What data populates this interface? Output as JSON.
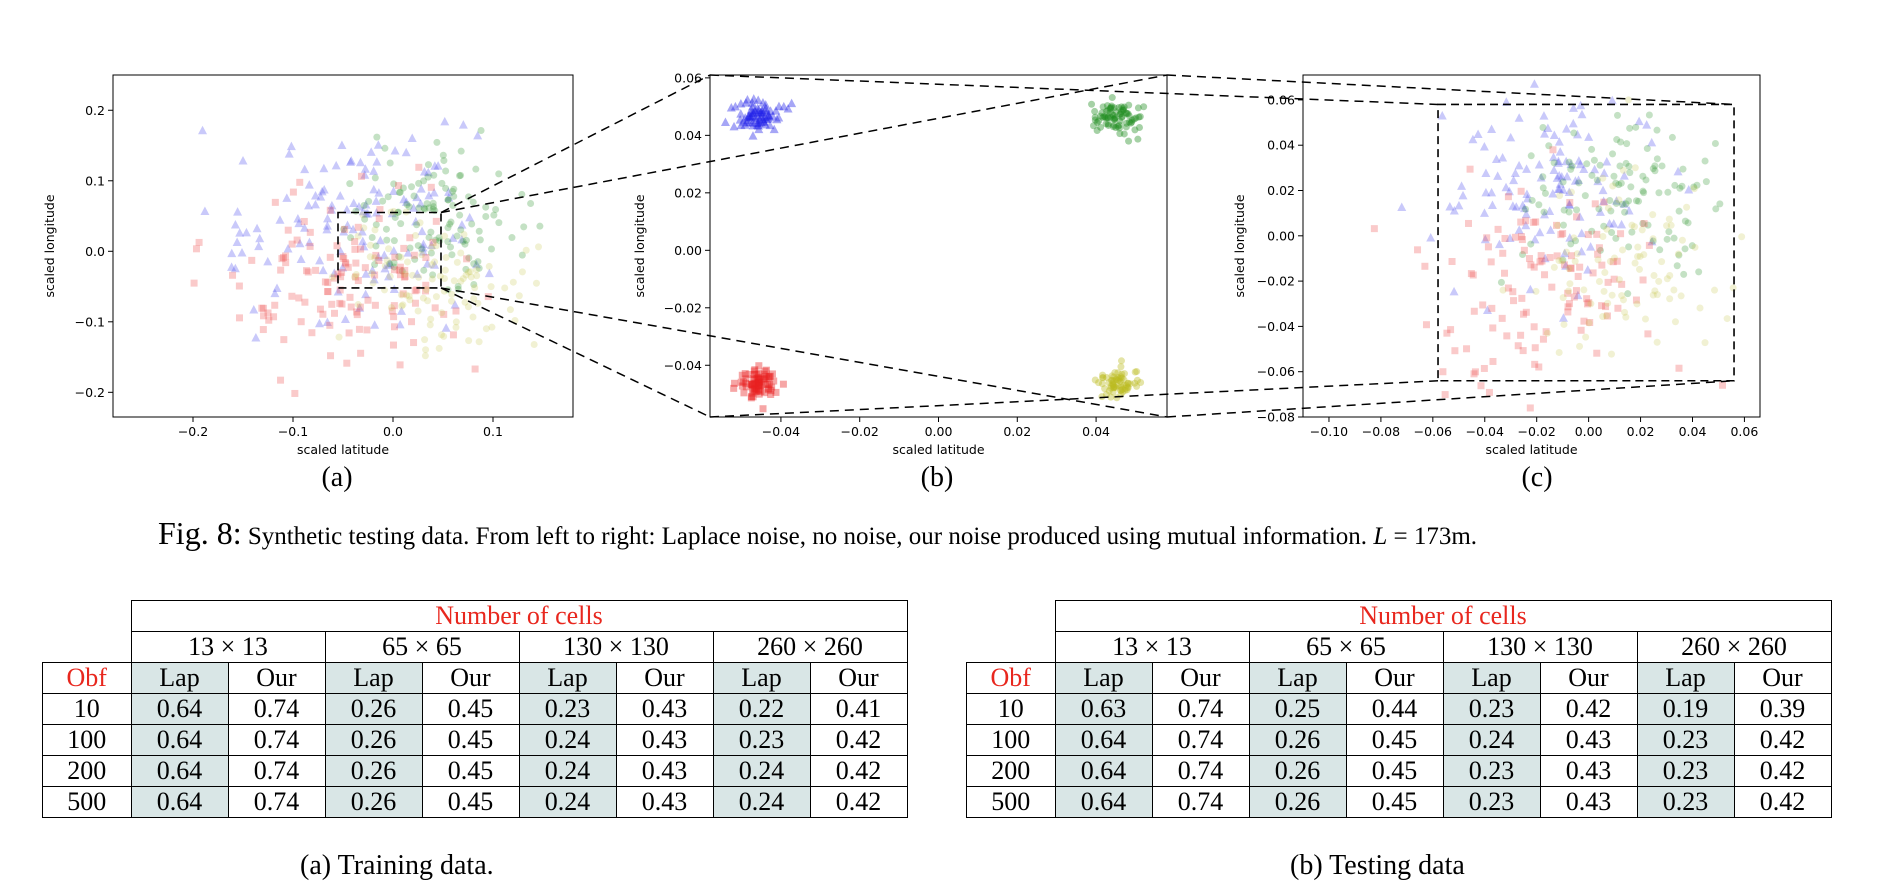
{
  "figure": {
    "caption_prefix": "Fig. 8:",
    "caption_text": "Synthetic testing data. From left to right: Laplace noise, no noise, our noise produced using mutual information. ",
    "caption_var": "L",
    "caption_eq": " = 173m.",
    "sublabels": [
      "(a)",
      "(b)",
      "(c)"
    ]
  },
  "chart_data": [
    {
      "type": "scatter",
      "id": "a",
      "xlabel": "scaled latitude",
      "ylabel": "scaled longitude",
      "xlim": [
        -0.28,
        0.18
      ],
      "ylim": [
        -0.235,
        0.25
      ],
      "xticks": [
        -0.2,
        -0.1,
        0.0,
        0.1
      ],
      "yticks": [
        -0.2,
        -0.1,
        0.0,
        0.1,
        0.2
      ],
      "tick_decimals": 1,
      "zoom_box": [
        -0.055,
        0.048,
        -0.052,
        0.055
      ],
      "series": [
        {
          "color": "#4b4bf0",
          "marker": "triangle",
          "center": [
            -0.045,
            0.045
          ],
          "spread": 0.065,
          "n": 140,
          "alpha": 0.3
        },
        {
          "color": "#3a9a3a",
          "marker": "circle",
          "center": [
            0.045,
            0.045
          ],
          "spread": 0.045,
          "n": 120,
          "alpha": 0.3
        },
        {
          "color": "#f05050",
          "marker": "square",
          "center": [
            -0.045,
            -0.045
          ],
          "spread": 0.06,
          "n": 130,
          "alpha": 0.3
        },
        {
          "color": "#c8c850",
          "marker": "circle",
          "center": [
            0.045,
            -0.045
          ],
          "spread": 0.045,
          "n": 100,
          "alpha": 0.25
        }
      ]
    },
    {
      "type": "scatter",
      "id": "b",
      "xlabel": "scaled latitude",
      "ylabel": "scaled longitude",
      "xlim": [
        -0.058,
        0.058
      ],
      "ylim": [
        -0.058,
        0.061
      ],
      "xticks": [
        -0.04,
        -0.02,
        0.0,
        0.02,
        0.04
      ],
      "yticks": [
        -0.04,
        -0.02,
        0.0,
        0.02,
        0.04,
        0.06
      ],
      "tick_decimals": 2,
      "series": [
        {
          "color": "#2020e8",
          "marker": "triangle",
          "center": [
            -0.0455,
            0.0465
          ],
          "spread": 0.0028,
          "n": 80,
          "alpha": 0.4
        },
        {
          "color": "#1e8c1e",
          "marker": "circle",
          "center": [
            0.0455,
            0.0465
          ],
          "spread": 0.0028,
          "n": 80,
          "alpha": 0.4
        },
        {
          "color": "#e82020",
          "marker": "square",
          "center": [
            -0.0455,
            -0.0465
          ],
          "spread": 0.0028,
          "n": 80,
          "alpha": 0.4
        },
        {
          "color": "#bcbc20",
          "marker": "circle",
          "center": [
            0.0455,
            -0.0465
          ],
          "spread": 0.0028,
          "n": 70,
          "alpha": 0.4
        }
      ]
    },
    {
      "type": "scatter",
      "id": "c",
      "xlabel": "scaled latitude",
      "ylabel": "scaled longitude",
      "xlim": [
        -0.11,
        0.066
      ],
      "ylim": [
        -0.08,
        0.071
      ],
      "xticks": [
        -0.1,
        -0.08,
        -0.06,
        -0.04,
        -0.02,
        0.0,
        0.02,
        0.04,
        0.06
      ],
      "yticks": [
        -0.08,
        -0.06,
        -0.04,
        -0.02,
        0.0,
        0.02,
        0.04,
        0.06
      ],
      "tick_decimals": 2,
      "dashed_box": [
        -0.058,
        0.056,
        -0.064,
        0.058
      ],
      "series": [
        {
          "color": "#4b4bf0",
          "marker": "triangle",
          "center": [
            -0.015,
            0.02
          ],
          "spread": 0.02,
          "n": 120,
          "alpha": 0.3
        },
        {
          "color": "#3a9a3a",
          "marker": "circle",
          "center": [
            0.012,
            0.018
          ],
          "spread": 0.02,
          "n": 110,
          "alpha": 0.3
        },
        {
          "color": "#f05050",
          "marker": "square",
          "center": [
            -0.018,
            -0.02
          ],
          "spread": 0.022,
          "n": 120,
          "alpha": 0.3
        },
        {
          "color": "#c8c850",
          "marker": "circle",
          "center": [
            0.015,
            -0.012
          ],
          "spread": 0.02,
          "n": 90,
          "alpha": 0.25
        }
      ]
    }
  ],
  "tables": [
    {
      "caption": "(a) Training data.",
      "header_main": "Number of cells",
      "groups": [
        "13 × 13",
        "65 × 65",
        "130 × 130",
        "260 × 260"
      ],
      "obf_label": "Obf",
      "subheaders": [
        "Lap",
        "Our",
        "Lap",
        "Our",
        "Lap",
        "Our",
        "Lap",
        "Our"
      ],
      "rows": [
        {
          "obf": "10",
          "values": [
            "0.64",
            "0.74",
            "0.26",
            "0.45",
            "0.23",
            "0.43",
            "0.22",
            "0.41"
          ]
        },
        {
          "obf": "100",
          "values": [
            "0.64",
            "0.74",
            "0.26",
            "0.45",
            "0.24",
            "0.43",
            "0.23",
            "0.42"
          ]
        },
        {
          "obf": "200",
          "values": [
            "0.64",
            "0.74",
            "0.26",
            "0.45",
            "0.24",
            "0.43",
            "0.24",
            "0.42"
          ]
        },
        {
          "obf": "500",
          "values": [
            "0.64",
            "0.74",
            "0.26",
            "0.45",
            "0.24",
            "0.43",
            "0.24",
            "0.42"
          ]
        }
      ]
    },
    {
      "caption": "(b) Testing data",
      "header_main": "Number of cells",
      "groups": [
        "13 × 13",
        "65 × 65",
        "130 × 130",
        "260 × 260"
      ],
      "obf_label": "Obf",
      "subheaders": [
        "Lap",
        "Our",
        "Lap",
        "Our",
        "Lap",
        "Our",
        "Lap",
        "Our"
      ],
      "rows": [
        {
          "obf": "10",
          "values": [
            "0.63",
            "0.74",
            "0.25",
            "0.44",
            "0.23",
            "0.42",
            "0.19",
            "0.39"
          ]
        },
        {
          "obf": "100",
          "values": [
            "0.64",
            "0.74",
            "0.26",
            "0.45",
            "0.24",
            "0.43",
            "0.23",
            "0.42"
          ]
        },
        {
          "obf": "200",
          "values": [
            "0.64",
            "0.74",
            "0.26",
            "0.45",
            "0.23",
            "0.43",
            "0.23",
            "0.42"
          ]
        },
        {
          "obf": "500",
          "values": [
            "0.64",
            "0.74",
            "0.26",
            "0.45",
            "0.23",
            "0.43",
            "0.23",
            "0.42"
          ]
        }
      ]
    }
  ],
  "colors": {
    "accent_red": "#e8271e",
    "cell_shade": "#d9e6e6"
  }
}
